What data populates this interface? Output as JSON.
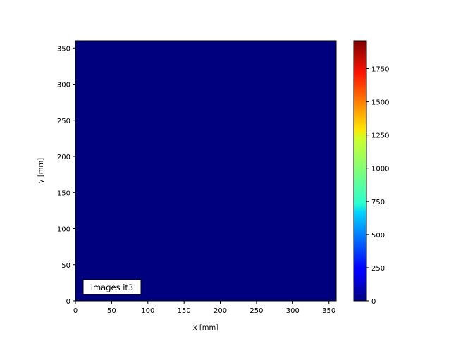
{
  "chart_data": {
    "type": "heatmap",
    "title": "",
    "xlabel": "x [mm]",
    "ylabel": "y [mm]",
    "xlim": [
      0,
      360
    ],
    "ylim": [
      0,
      360
    ],
    "xticks": [
      0,
      50,
      100,
      150,
      200,
      250,
      300,
      350
    ],
    "yticks": [
      0,
      50,
      100,
      150,
      200,
      250,
      300,
      350
    ],
    "values_description_uniform": 0,
    "fill_color": "#00007f",
    "colormap": "jet",
    "colorbar": {
      "range": [
        0,
        1960
      ],
      "ticks": [
        0,
        250,
        500,
        750,
        1000,
        1250,
        1500,
        1750
      ]
    },
    "annotation": "images it3",
    "grid": false
  }
}
